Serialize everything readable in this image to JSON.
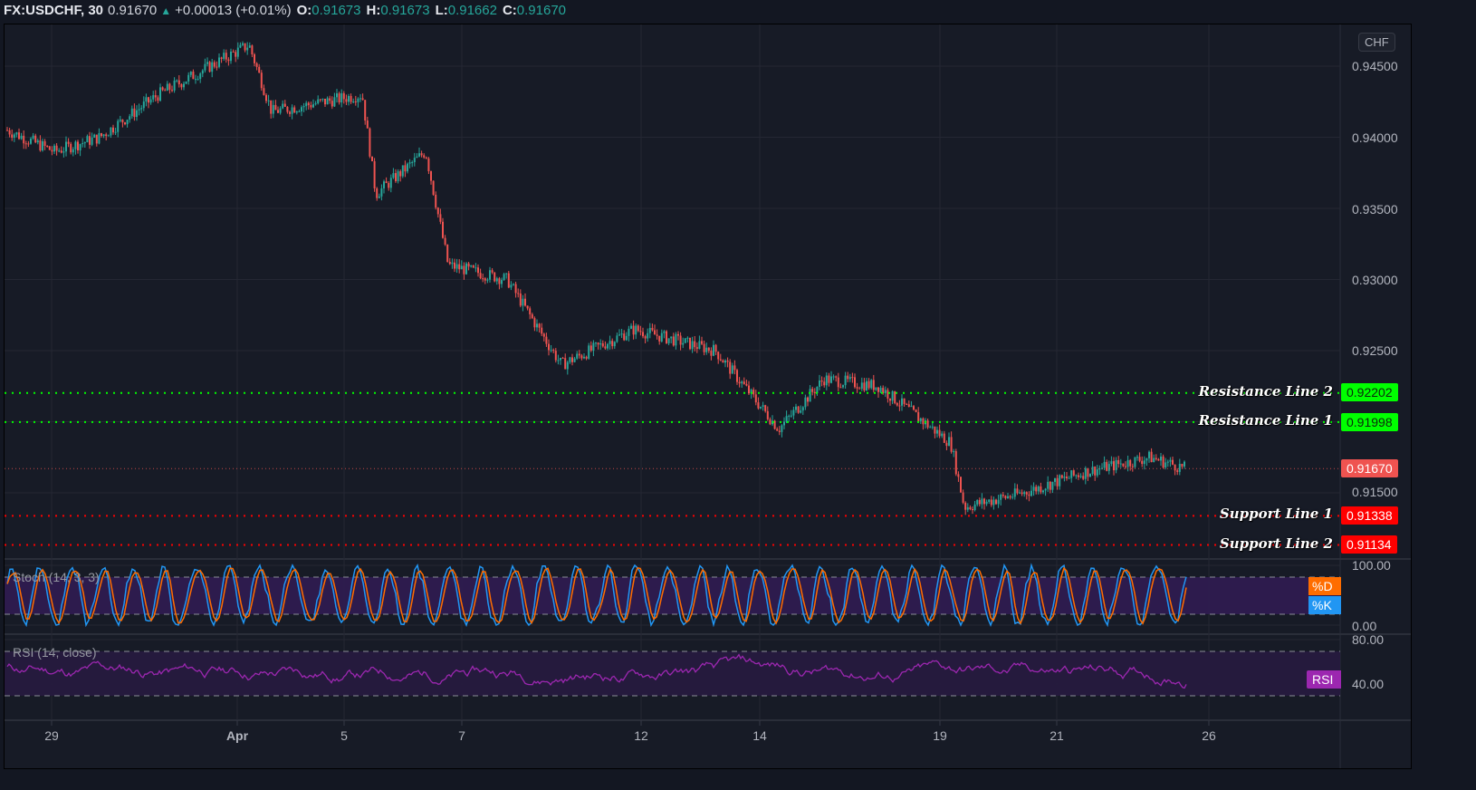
{
  "header": {
    "symbol": "FX:USDCHF, 30",
    "last": "0.91670",
    "arrow": "▲",
    "change": "+0.00013 (+0.01%)",
    "ohlc": [
      {
        "key": "O:",
        "value": "0.91673"
      },
      {
        "key": "H:",
        "value": "0.91673"
      },
      {
        "key": "L:",
        "value": "0.91662"
      },
      {
        "key": "C:",
        "value": "0.91670"
      }
    ]
  },
  "price_axis": {
    "currency": "CHF",
    "ticks": [
      "0.94500",
      "0.94000",
      "0.93500",
      "0.93000",
      "0.92500",
      "0.91500"
    ]
  },
  "horizontal_lines": [
    {
      "label": "Resistance Line 2",
      "value": "0.92202",
      "color": "#00ff00",
      "text_color": "#0b2a0b"
    },
    {
      "label": "Resistance Line 1",
      "value": "0.91998",
      "color": "#00ff00",
      "text_color": "#0b2a0b"
    },
    {
      "label": "Support Line 1",
      "value": "0.91338",
      "color": "#ff0000",
      "text_color": "#ffffff"
    },
    {
      "label": "Support Line 2",
      "value": "0.91134",
      "color": "#ff0000",
      "text_color": "#ffffff"
    }
  ],
  "current_price": {
    "value": "0.91670",
    "color": "#ef5350"
  },
  "stoch": {
    "title": "Stoch (14, 3, 3)",
    "axis_ticks": [
      "100.00",
      "0.00"
    ],
    "badges": [
      {
        "label": "%D",
        "color": "#ff6d00"
      },
      {
        "label": "%K",
        "color": "#2196f3"
      }
    ]
  },
  "rsi": {
    "title": "RSI (14, close)",
    "axis_ticks": [
      "80.00",
      "40.00"
    ],
    "badge": {
      "label": "RSI",
      "color": "#9c27b0"
    }
  },
  "x_axis": {
    "labels": [
      "29",
      "Apr",
      "5",
      "7",
      "12",
      "14",
      "19",
      "21",
      "26"
    ]
  },
  "colors": {
    "up": "#26a69a",
    "down": "#ef5350",
    "background": "#171b26",
    "grid": "#242733"
  },
  "chart_data": [
    {
      "type": "candlestick",
      "title": "FX:USDCHF, 30",
      "xlabel": "",
      "ylabel": "CHF",
      "ylim": [
        0.9105,
        0.9475
      ],
      "grid": true,
      "categories": [
        "29",
        "Apr",
        "5",
        "7",
        "12",
        "14",
        "19",
        "21",
        "26"
      ],
      "approx_close_path": [
        {
          "x": "Mar 28",
          "close": 0.9405
        },
        {
          "x": "Mar 29",
          "close": 0.939
        },
        {
          "x": "Mar 30",
          "close": 0.94
        },
        {
          "x": "Mar 31",
          "close": 0.943
        },
        {
          "x": "Apr 1",
          "close": 0.9465
        },
        {
          "x": "Apr 2",
          "close": 0.9418
        },
        {
          "x": "Apr 5",
          "close": 0.943
        },
        {
          "x": "Apr 6",
          "close": 0.936
        },
        {
          "x": "Apr 6b",
          "close": 0.939
        },
        {
          "x": "Apr 7",
          "close": 0.931
        },
        {
          "x": "Apr 8",
          "close": 0.93
        },
        {
          "x": "Apr 9",
          "close": 0.924
        },
        {
          "x": "Apr 12",
          "close": 0.9265
        },
        {
          "x": "Apr 13",
          "close": 0.925
        },
        {
          "x": "Apr 14",
          "close": 0.9195
        },
        {
          "x": "Apr 15",
          "close": 0.923
        },
        {
          "x": "Apr 16",
          "close": 0.9225
        },
        {
          "x": "Apr 19",
          "close": 0.9185
        },
        {
          "x": "Apr 19b",
          "close": 0.914
        },
        {
          "x": "Apr 20",
          "close": 0.915
        },
        {
          "x": "Apr 21",
          "close": 0.9165
        },
        {
          "x": "Apr 22",
          "close": 0.9175
        },
        {
          "x": "Apr 23",
          "close": 0.9167
        }
      ],
      "last_price": 0.9167,
      "annotations": [
        {
          "label": "Resistance Line 2",
          "y": 0.92202
        },
        {
          "label": "Resistance Line 1",
          "y": 0.91998
        },
        {
          "label": "Support Line 1",
          "y": 0.91338
        },
        {
          "label": "Support Line 2",
          "y": 0.91134
        }
      ]
    },
    {
      "type": "line",
      "title": "Stoch (14, 3, 3)",
      "ylim": [
        0,
        100
      ],
      "bands": [
        20,
        80
      ],
      "series": [
        {
          "name": "%K",
          "color": "#2196f3"
        },
        {
          "name": "%D",
          "color": "#ff6d00"
        }
      ],
      "note": "oscillates between ~0 and ~100 repeatedly"
    },
    {
      "type": "line",
      "title": "RSI (14, close)",
      "ylim": [
        20,
        85
      ],
      "bands": [
        30,
        70
      ],
      "series": [
        {
          "name": "RSI",
          "color": "#9c27b0"
        }
      ],
      "note": "oscillates mostly between ~28 and ~72"
    }
  ]
}
